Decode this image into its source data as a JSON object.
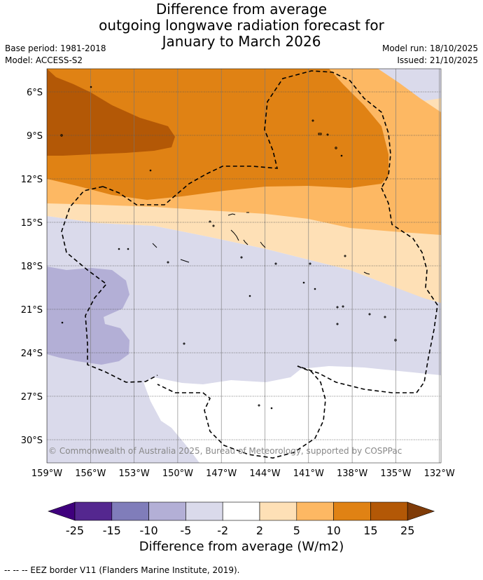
{
  "title": {
    "line1": "Difference from average",
    "line2": "outgoing longwave radiation forecast for",
    "line3": "January to March 2026"
  },
  "meta": {
    "base_period": "Base period: 1981-2018",
    "model": "Model: ACCESS-S2",
    "model_run": "Model run: 18/10/2025",
    "issued": "Issued: 21/10/2025"
  },
  "map": {
    "lat_labels": [
      "6°S",
      "9°S",
      "12°S",
      "15°S",
      "18°S",
      "21°S",
      "24°S",
      "27°S",
      "30°S"
    ],
    "lon_labels": [
      "159°W",
      "156°W",
      "153°W",
      "150°W",
      "147°W",
      "144°W",
      "141°W",
      "138°W",
      "135°W",
      "132°W"
    ],
    "copyright": "© Commonwealth of Australia 2025, Bureau of Meteorology, supported by COSPPac"
  },
  "colorbar": {
    "ticks": [
      "-25",
      "-15",
      "-10",
      "-5",
      "-2",
      "2",
      "5",
      "10",
      "15",
      "25"
    ],
    "colors": [
      "#3f007d",
      "#54278f",
      "#807dba",
      "#b3afd6",
      "#dadaeb",
      "#ffffff",
      "#fee0b6",
      "#fdb863",
      "#e08214",
      "#b35806",
      "#7f3b08"
    ],
    "label": "Difference from average (W/m2)"
  },
  "footer": "-- -- -- EEZ border V11 (Flanders Marine Institute, 2019)."
}
